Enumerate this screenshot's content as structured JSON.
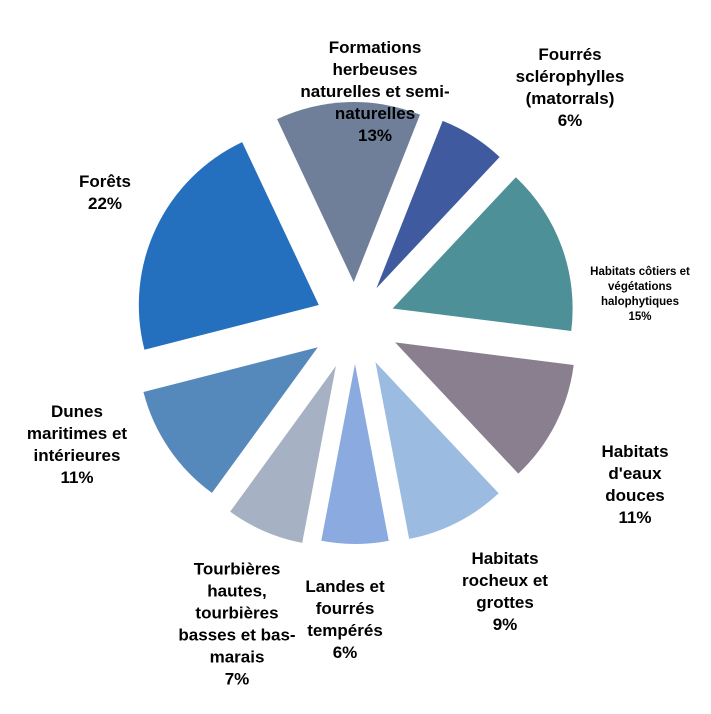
{
  "chart_data": {
    "type": "pie",
    "categories": [
      "Fourrés sclérophylles (matorrals)",
      "Habitats côtiers et végétations halophytiques",
      "Habitats d'eaux douces",
      "Habitats rocheux et grottes",
      "Landes et fourrés tempérés",
      "Tourbières hautes, tourbières basses et bas-marais",
      "Dunes maritimes et intérieures",
      "Forêts",
      "Formations herbeuses naturelles et semi-naturelles"
    ],
    "values": [
      6,
      15,
      11,
      9,
      6,
      7,
      11,
      22,
      13
    ],
    "value_labels": [
      "6%",
      "15%",
      "11%",
      "9%",
      "6%",
      "7%",
      "11%",
      "22%",
      "13%"
    ],
    "colors": [
      "#3f5a9e",
      "#4e9098",
      "#8a7f8e",
      "#9bbce0",
      "#8aaae0",
      "#a6b2c4",
      "#5589bb",
      "#2470bf",
      "#6f7f99"
    ]
  }
}
